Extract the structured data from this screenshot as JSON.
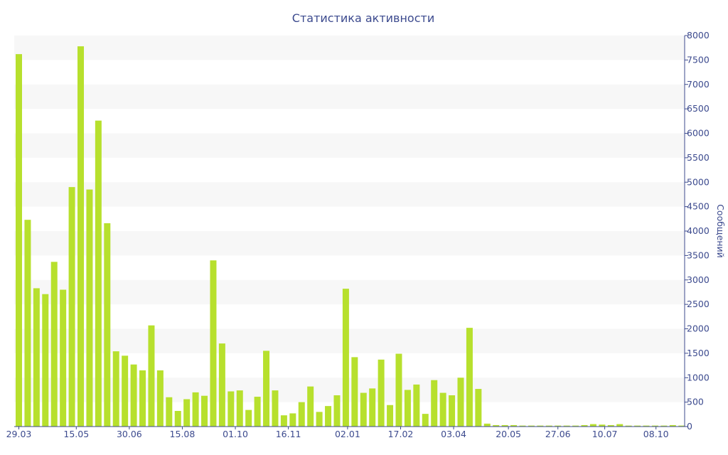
{
  "chart_data": {
    "type": "bar",
    "title": "Статистика активности",
    "xlabel": "",
    "ylabel": "Сообщений",
    "ylim": [
      0,
      8000
    ],
    "y_axis_position": "right",
    "yticks": [
      0,
      500,
      1000,
      1500,
      2000,
      2500,
      3000,
      3500,
      4000,
      4500,
      5000,
      5500,
      6000,
      6500,
      7000,
      7500,
      8000
    ],
    "xtick_labels": [
      {
        "label": "29.03",
        "index": 0
      },
      {
        "label": "15.05",
        "index": 6.5
      },
      {
        "label": "30.06",
        "index": 12.5
      },
      {
        "label": "15.08",
        "index": 18.5
      },
      {
        "label": "01.10",
        "index": 24.5
      },
      {
        "label": "16.11",
        "index": 30.5
      },
      {
        "label": "02.01",
        "index": 37.2
      },
      {
        "label": "17.02",
        "index": 43.2
      },
      {
        "label": "03.04",
        "index": 49.2
      },
      {
        "label": "20.05",
        "index": 55.4
      },
      {
        "label": "27.06",
        "index": 61
      },
      {
        "label": "10.07",
        "index": 66.3
      },
      {
        "label": "08.10",
        "index": 72.1
      }
    ],
    "grid": "alternating-bands",
    "colors": {
      "bar": "#b7e02d",
      "band": "#f7f7f7",
      "text": "#3c4a8e"
    },
    "values": [
      7620,
      4230,
      2830,
      2710,
      3370,
      2800,
      4900,
      7780,
      4850,
      6260,
      4160,
      1540,
      1450,
      1270,
      1150,
      2070,
      1150,
      600,
      320,
      560,
      700,
      630,
      3400,
      1700,
      720,
      740,
      340,
      610,
      1550,
      740,
      230,
      270,
      500,
      820,
      300,
      420,
      640,
      2820,
      1420,
      690,
      780,
      1370,
      440,
      1490,
      750,
      860,
      260,
      950,
      690,
      640,
      1000,
      2020,
      770,
      60,
      30,
      30,
      30,
      20,
      20,
      20,
      20,
      20,
      20,
      20,
      30,
      50,
      40,
      30,
      50,
      20,
      20,
      20,
      20,
      20,
      30,
      20
    ]
  }
}
